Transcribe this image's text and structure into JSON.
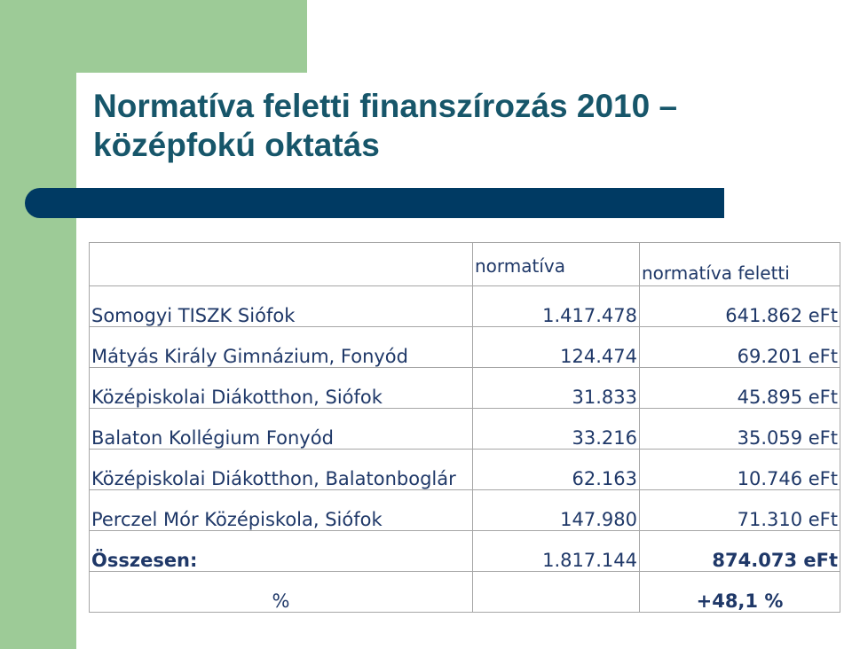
{
  "title": {
    "line1": "Normatíva feletti finanszírozás 2010 –",
    "line2": "középfokú oktatás"
  },
  "colors": {
    "green_accent": "#9dcb97",
    "navy_bar": "#003a63",
    "title_color": "#17566a",
    "text_color": "#1f3868"
  },
  "table": {
    "headers": [
      "",
      "normatíva",
      "normatíva feletti"
    ],
    "rows": [
      {
        "name": "Somogyi TISZK Siófok",
        "normativa": "1.417.478",
        "feletti": "641.862 eFt"
      },
      {
        "name": "Mátyás Király Gimnázium, Fonyód",
        "normativa": "124.474",
        "feletti": "69.201 eFt"
      },
      {
        "name": "Középiskolai Diákotthon, Siófok",
        "normativa": "31.833",
        "feletti": "45.895 eFt"
      },
      {
        "name": "Balaton Kollégium Fonyód",
        "normativa": "33.216",
        "feletti": "35.059 eFt"
      },
      {
        "name": "Középiskolai Diákotthon, Balatonboglár",
        "normativa": "62.163",
        "feletti": "10.746 eFt"
      },
      {
        "name": "Perczel Mór Középiskola, Siófok",
        "normativa": "147.980",
        "feletti": "71.310 eFt"
      }
    ],
    "total": {
      "name": "Összesen:",
      "normativa": "1.817.144",
      "feletti": "874.073 eFt"
    },
    "percent": {
      "label": "%",
      "value": "+48,1 %"
    }
  }
}
